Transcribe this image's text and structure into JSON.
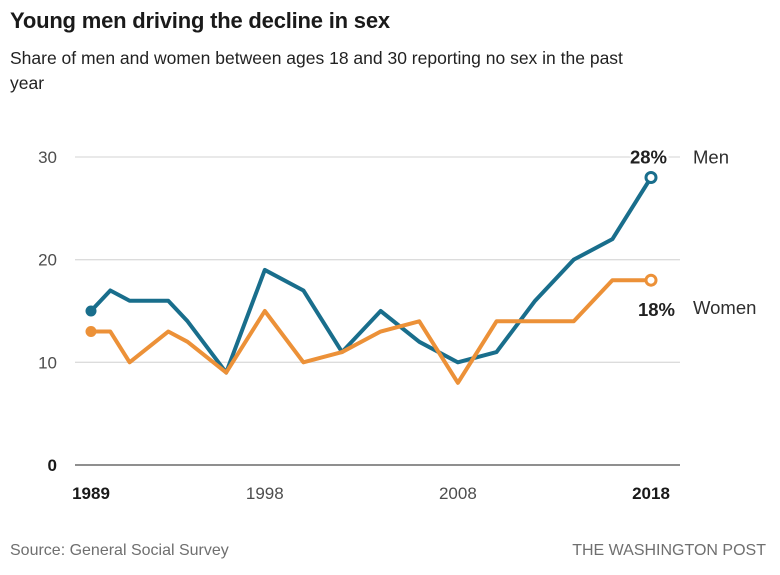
{
  "header": {
    "title": "Young men driving the decline in sex",
    "subtitle_line1": "Share of men and women between ages 18 and 30 reporting no sex in the past",
    "subtitle_line2": "year"
  },
  "chart_data": {
    "type": "line",
    "title": "Young men driving the decline in sex",
    "subtitle": "Share of men and women between ages 18 and 30 reporting no sex in the past year",
    "x": [
      1989,
      1990,
      1991,
      1993,
      1994,
      1996,
      1998,
      2000,
      2002,
      2004,
      2006,
      2008,
      2010,
      2012,
      2014,
      2016,
      2018
    ],
    "series": [
      {
        "name": "Men",
        "color": "#196e8c",
        "values": [
          15,
          17,
          16,
          16,
          14,
          9,
          19,
          17,
          11,
          15,
          12,
          10,
          11,
          16,
          20,
          22,
          28
        ],
        "end_label": "28%"
      },
      {
        "name": "Women",
        "color": "#ec9138",
        "values": [
          13,
          13,
          10,
          13,
          12,
          9,
          15,
          10,
          11,
          13,
          14,
          8,
          14,
          14,
          14,
          18,
          18
        ],
        "end_label": "18%"
      }
    ],
    "xlabel": "",
    "ylabel": "",
    "ylim": [
      0,
      30
    ],
    "yticks": [
      0,
      10,
      20,
      30
    ],
    "xticks": [
      1989,
      1998,
      2008,
      2018
    ],
    "grid": "horizontal",
    "grid_color": "#dcdcdc",
    "axis_line_color": "#8f8f8f",
    "legend_position": "right-of-line-ends"
  },
  "footer": {
    "source": "Source: General Social Survey",
    "credit": "THE WASHINGTON POST"
  }
}
